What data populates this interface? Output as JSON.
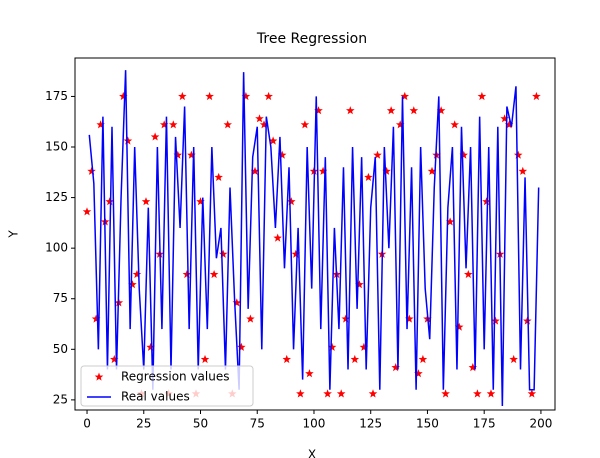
{
  "chart_data": {
    "type": "scatter",
    "title": "Tree Regression",
    "x_label": "X",
    "y_label": "Y",
    "xlim": [
      -5.3,
      206.2
    ],
    "ylim": [
      20,
      194
    ],
    "xticks": [
      0,
      25,
      50,
      75,
      100,
      125,
      150,
      175,
      200
    ],
    "yticks": [
      25,
      50,
      75,
      100,
      125,
      150,
      175
    ],
    "legend": "lower left",
    "series": [
      {
        "name": "Regression values",
        "color": "#ff0000",
        "mark": "star",
        "x": [
          0,
          2,
          4,
          6,
          8,
          10,
          12,
          14,
          16,
          18,
          20,
          22,
          24,
          26,
          28,
          30,
          32,
          34,
          36,
          38,
          40,
          42,
          44,
          46,
          48,
          50,
          52,
          54,
          56,
          58,
          60,
          62,
          64,
          66,
          68,
          70,
          72,
          74,
          76,
          78,
          80,
          82,
          84,
          86,
          88,
          90,
          92,
          94,
          96,
          98,
          100,
          102,
          104,
          106,
          108,
          110,
          112,
          114,
          116,
          118,
          120,
          122,
          124,
          126,
          128,
          130,
          132,
          134,
          136,
          138,
          140,
          142,
          144,
          146,
          148,
          150,
          152,
          154,
          156,
          158,
          160,
          162,
          164,
          166,
          168,
          170,
          172,
          174,
          176,
          178,
          180,
          182,
          184,
          186,
          188,
          190,
          192,
          194,
          196,
          198
        ],
        "values": [
          118,
          138,
          65,
          161,
          113,
          123,
          45,
          73,
          175,
          153,
          82,
          87,
          28,
          123,
          51,
          155,
          97,
          161,
          28,
          161,
          146,
          175,
          87,
          146,
          28,
          123,
          45,
          175,
          87,
          135,
          97,
          161,
          28,
          73,
          51,
          175,
          65,
          138,
          164,
          161,
          175,
          153,
          105,
          146,
          45,
          123,
          97,
          28,
          161,
          38,
          138,
          168,
          138,
          28,
          51,
          87,
          28,
          65,
          168,
          45,
          82,
          51,
          135,
          28,
          146,
          97,
          138,
          168,
          41,
          161,
          175,
          65,
          168,
          38,
          45,
          65,
          138,
          146,
          168,
          28,
          113,
          161,
          61,
          146,
          87,
          41,
          28,
          175,
          123,
          28,
          64,
          97,
          164,
          161,
          45,
          146,
          138,
          64,
          28,
          175
        ]
      },
      {
        "name": "Real values",
        "color": "#0000ff",
        "mark": "line",
        "x": [
          1,
          3,
          5,
          7,
          9,
          11,
          13,
          15,
          17,
          19,
          21,
          23,
          25,
          27,
          29,
          31,
          33,
          35,
          37,
          39,
          41,
          43,
          45,
          47,
          49,
          51,
          53,
          55,
          57,
          59,
          61,
          63,
          65,
          67,
          69,
          71,
          73,
          75,
          77,
          79,
          81,
          83,
          85,
          87,
          89,
          91,
          93,
          95,
          97,
          99,
          101,
          103,
          105,
          107,
          109,
          111,
          113,
          115,
          117,
          119,
          121,
          123,
          125,
          127,
          129,
          131,
          133,
          135,
          137,
          139,
          141,
          143,
          145,
          147,
          149,
          151,
          153,
          155,
          157,
          159,
          161,
          163,
          165,
          167,
          169,
          171,
          173,
          175,
          177,
          179,
          181,
          183,
          185,
          187,
          189,
          191,
          193,
          195,
          197,
          199
        ],
        "values": [
          156,
          132,
          50,
          165,
          40,
          160,
          40,
          125,
          188,
          60,
          150,
          80,
          40,
          120,
          30,
          150,
          60,
          165,
          40,
          155,
          110,
          170,
          60,
          150,
          40,
          125,
          60,
          150,
          95,
          110,
          40,
          130,
          75,
          30,
          187,
          70,
          145,
          160,
          50,
          165,
          150,
          110,
          155,
          90,
          140,
          50,
          110,
          35,
          150,
          80,
          175,
          60,
          145,
          30,
          110,
          60,
          140,
          40,
          150,
          70,
          145,
          40,
          120,
          145,
          30,
          150,
          100,
          160,
          40,
          175,
          60,
          140,
          30,
          150,
          80,
          55,
          130,
          175,
          30,
          120,
          150,
          40,
          160,
          90,
          150,
          40,
          165,
          50,
          150,
          30,
          160,
          22,
          170,
          160,
          180,
          40,
          135,
          30,
          30,
          130
        ]
      }
    ]
  }
}
